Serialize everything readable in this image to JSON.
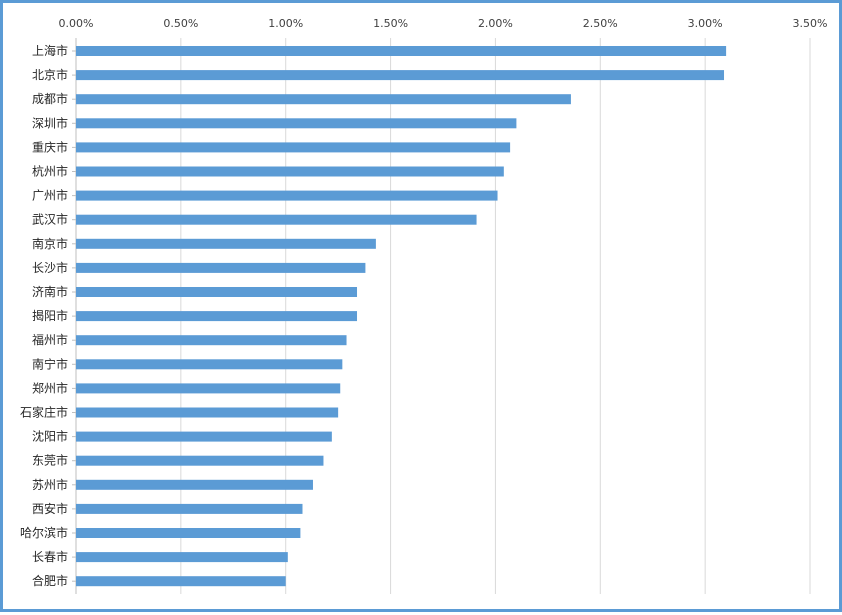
{
  "chart_data": {
    "type": "bar",
    "orientation": "horizontal",
    "title": "",
    "xlabel": "",
    "ylabel": "",
    "xlim": [
      0,
      3.5
    ],
    "x_ticks": [
      "0.00%",
      "0.50%",
      "1.00%",
      "1.50%",
      "2.00%",
      "2.50%",
      "3.00%",
      "3.50%"
    ],
    "grid": true,
    "legend": "none",
    "bar_color": "#5b9bd5",
    "gridline_color": "#d9d9d9",
    "categories": [
      "上海市",
      "北京市",
      "成都市",
      "深圳市",
      "重庆市",
      "杭州市",
      "广州市",
      "武汉市",
      "南京市",
      "长沙市",
      "济南市",
      "揭阳市",
      "福州市",
      "南宁市",
      "郑州市",
      "石家庄市",
      "沈阳市",
      "东莞市",
      "苏州市",
      "西安市",
      "哈尔滨市",
      "长春市",
      "合肥市"
    ],
    "values": [
      3.1,
      3.09,
      2.36,
      2.1,
      2.07,
      2.04,
      2.01,
      1.91,
      1.43,
      1.38,
      1.34,
      1.34,
      1.29,
      1.27,
      1.26,
      1.25,
      1.22,
      1.18,
      1.13,
      1.08,
      1.07,
      1.01,
      1.0
    ]
  }
}
